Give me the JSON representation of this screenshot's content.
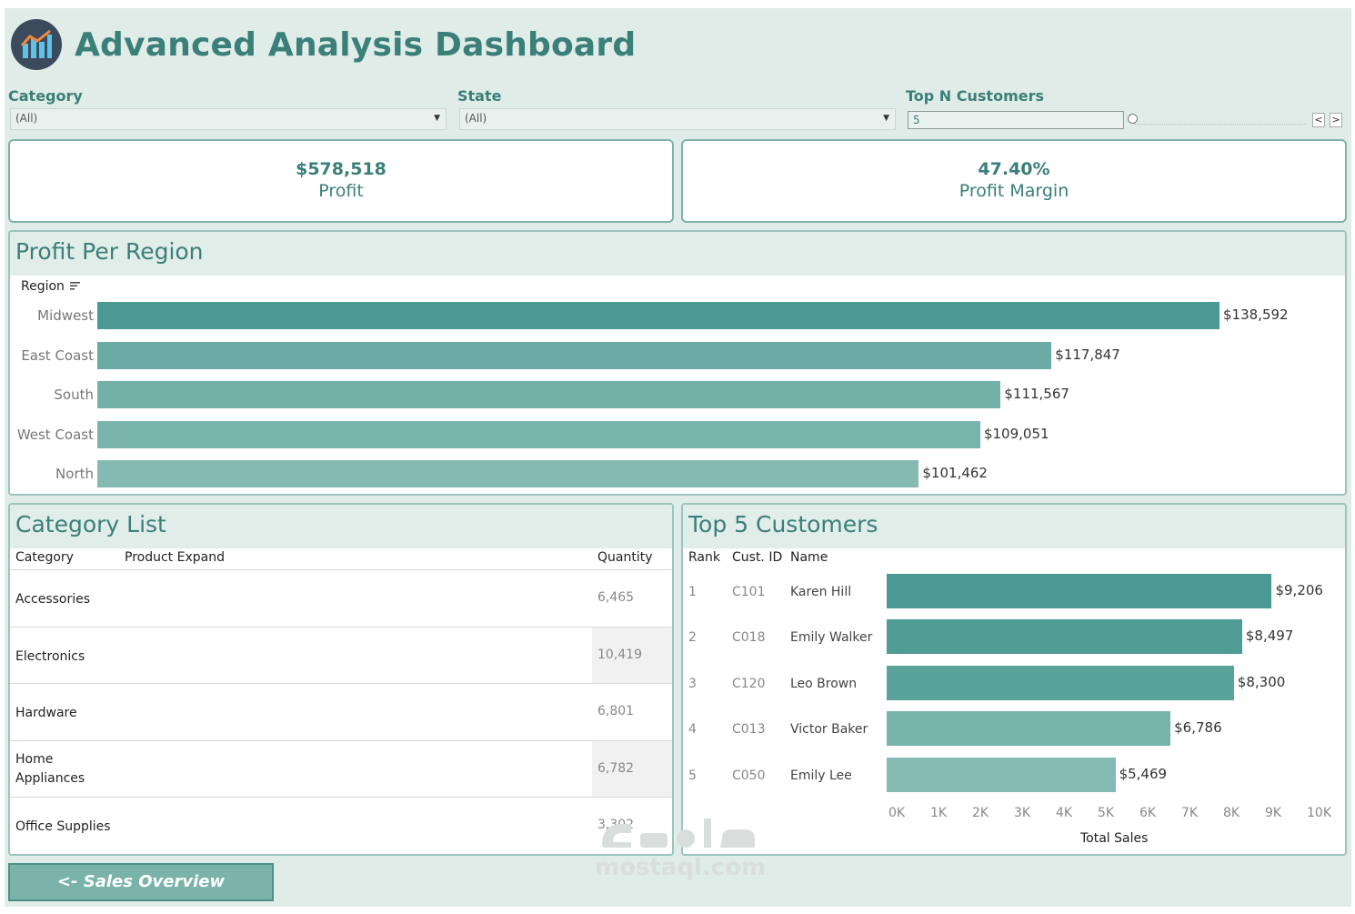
{
  "header": {
    "title": "Advanced Analysis Dashboard",
    "logo_icon": "chart-logo-icon"
  },
  "filters": {
    "category": {
      "label": "Category",
      "value": "(All)"
    },
    "state": {
      "label": "State",
      "value": "(All)"
    },
    "top_n": {
      "label": "Top N Customers",
      "value": "5",
      "prev": "<",
      "next": ">"
    }
  },
  "kpis": {
    "profit": {
      "value": "$578,518",
      "label": "Profit"
    },
    "margin": {
      "value": "47.40%",
      "label": "Profit Margin"
    }
  },
  "region_panel": {
    "title": "Profit Per Region",
    "header": "Region",
    "chart_data": {
      "type": "bar",
      "orientation": "horizontal",
      "categories": [
        "Midwest",
        "East Coast",
        "South",
        "West Coast",
        "North"
      ],
      "values": [
        138592,
        117847,
        111567,
        109051,
        101462
      ],
      "labels": [
        "$138,592",
        "$117,847",
        "$111,567",
        "$109,051",
        "$101,462"
      ],
      "colors": [
        "#4a9992",
        "#6aaba4",
        "#72b0a8",
        "#7ab5ad",
        "#84bab2"
      ]
    }
  },
  "category_panel": {
    "title": "Category List",
    "columns": [
      "Category",
      "Product Expand",
      "Quantity"
    ],
    "rows": [
      {
        "category": "Accessories",
        "quantity": "6,465"
      },
      {
        "category": "Electronics",
        "quantity": "10,419"
      },
      {
        "category": "Hardware",
        "quantity": "6,801"
      },
      {
        "category": "Home\nAppliances",
        "quantity": "6,782"
      },
      {
        "category": "Office Supplies",
        "quantity": "3,302"
      }
    ]
  },
  "customers_panel": {
    "title": "Top 5 Customers",
    "columns": [
      "Rank",
      "Cust. ID",
      "Name"
    ],
    "rows": [
      {
        "rank": "1",
        "id": "C101",
        "name": "Karen Hill",
        "value": "$9,206"
      },
      {
        "rank": "2",
        "id": "C018",
        "name": "Emily Walker",
        "value": "$8,497"
      },
      {
        "rank": "3",
        "id": "C120",
        "name": "Leo Brown",
        "value": "$8,300"
      },
      {
        "rank": "4",
        "id": "C013",
        "name": "Victor Baker",
        "value": "$6,786"
      },
      {
        "rank": "5",
        "id": "C050",
        "name": "Emily Lee",
        "value": "$5,469"
      }
    ],
    "chart_data": {
      "type": "bar",
      "orientation": "horizontal",
      "categories": [
        "Karen Hill",
        "Emily Walker",
        "Leo Brown",
        "Victor Baker",
        "Emily Lee"
      ],
      "values": [
        9206,
        8497,
        8300,
        6786,
        5469
      ],
      "xlim": [
        0,
        10000
      ],
      "ticks": [
        "0K",
        "1K",
        "2K",
        "3K",
        "4K",
        "5K",
        "6K",
        "7K",
        "8K",
        "9K",
        "10K"
      ],
      "xlabel": "Total Sales",
      "colors": [
        "#4a9992",
        "#4f9c95",
        "#5aa39b",
        "#78b3ab",
        "#86bbb3"
      ]
    }
  },
  "nav": {
    "back_label": "<- Sales Overview"
  },
  "watermark": {
    "text": "mostaql.com"
  }
}
